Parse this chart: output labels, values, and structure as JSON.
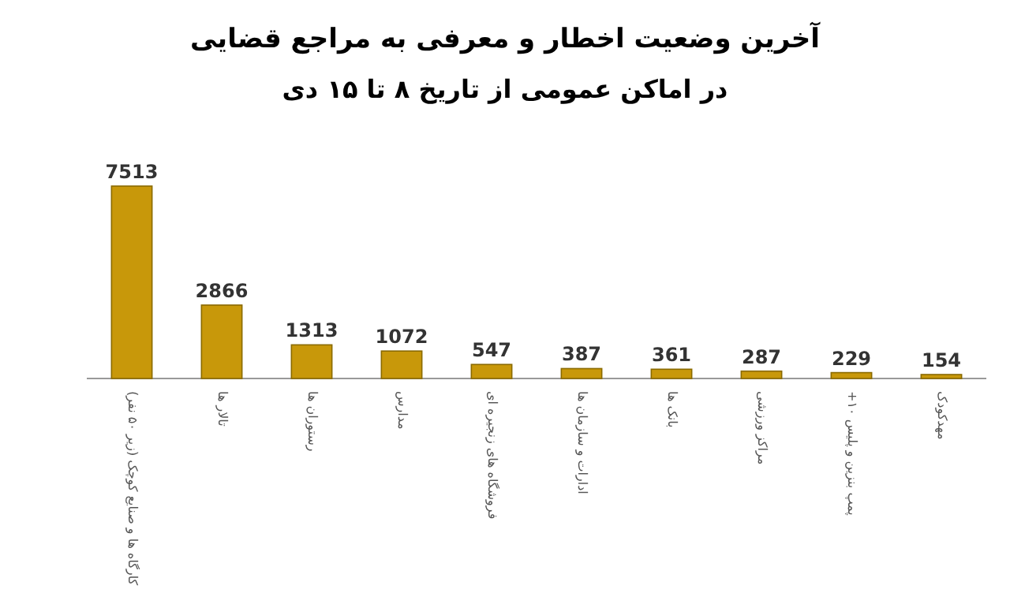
{
  "chart_data": {
    "type": "bar",
    "title": "آخرین وضعیت اخطار و معرفی به مراجع قضایی",
    "subtitle": "در اماکن عمومی از تاریخ ۸ تا ۱۵ دی",
    "categories": [
      "کارگاه ها و صنایع کوچک (زیر ۵۰ نفر)",
      "تالار ها",
      "رستوران ها",
      "مدارس",
      "فروشگاه های زنجیره ای",
      "ادارات و سازمان ها",
      "بانک ها",
      "مراکز ورزشی",
      "پمپ بنزین و پلیس ۱۰+",
      "مهدکودک"
    ],
    "values": [
      7513,
      2866,
      1313,
      1072,
      547,
      387,
      361,
      287,
      229,
      154
    ],
    "color": "#c8980a",
    "data_labels": true,
    "tick_labels": "x"
  }
}
